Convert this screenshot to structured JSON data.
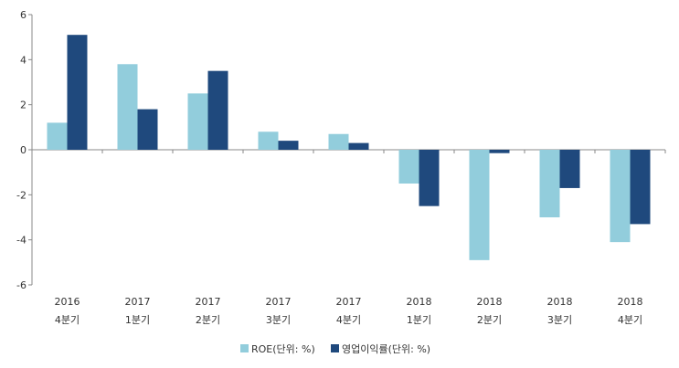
{
  "chart_data": {
    "type": "bar",
    "categories": [
      [
        "2016",
        "4분기"
      ],
      [
        "2017",
        "1분기"
      ],
      [
        "2017",
        "2분기"
      ],
      [
        "2017",
        "3분기"
      ],
      [
        "2017",
        "4분기"
      ],
      [
        "2018",
        "1분기"
      ],
      [
        "2018",
        "2분기"
      ],
      [
        "2018",
        "3분기"
      ],
      [
        "2018",
        "4분기"
      ]
    ],
    "series": [
      {
        "name": "ROE(단위: %)",
        "color": "#92cddc",
        "values": [
          1.2,
          3.8,
          2.5,
          0.8,
          0.7,
          -1.5,
          -4.9,
          -3.0,
          -4.1
        ]
      },
      {
        "name": "영업이익률(단위: %)",
        "color": "#1f497d",
        "values": [
          5.1,
          1.8,
          3.5,
          0.4,
          0.3,
          -2.5,
          -0.15,
          -1.7,
          -3.3
        ]
      }
    ],
    "ylim": [
      -6,
      6
    ],
    "yticks": [
      -6,
      -4,
      -2,
      0,
      2,
      4,
      6
    ],
    "grid": false,
    "legend_position": "bottom-center"
  }
}
